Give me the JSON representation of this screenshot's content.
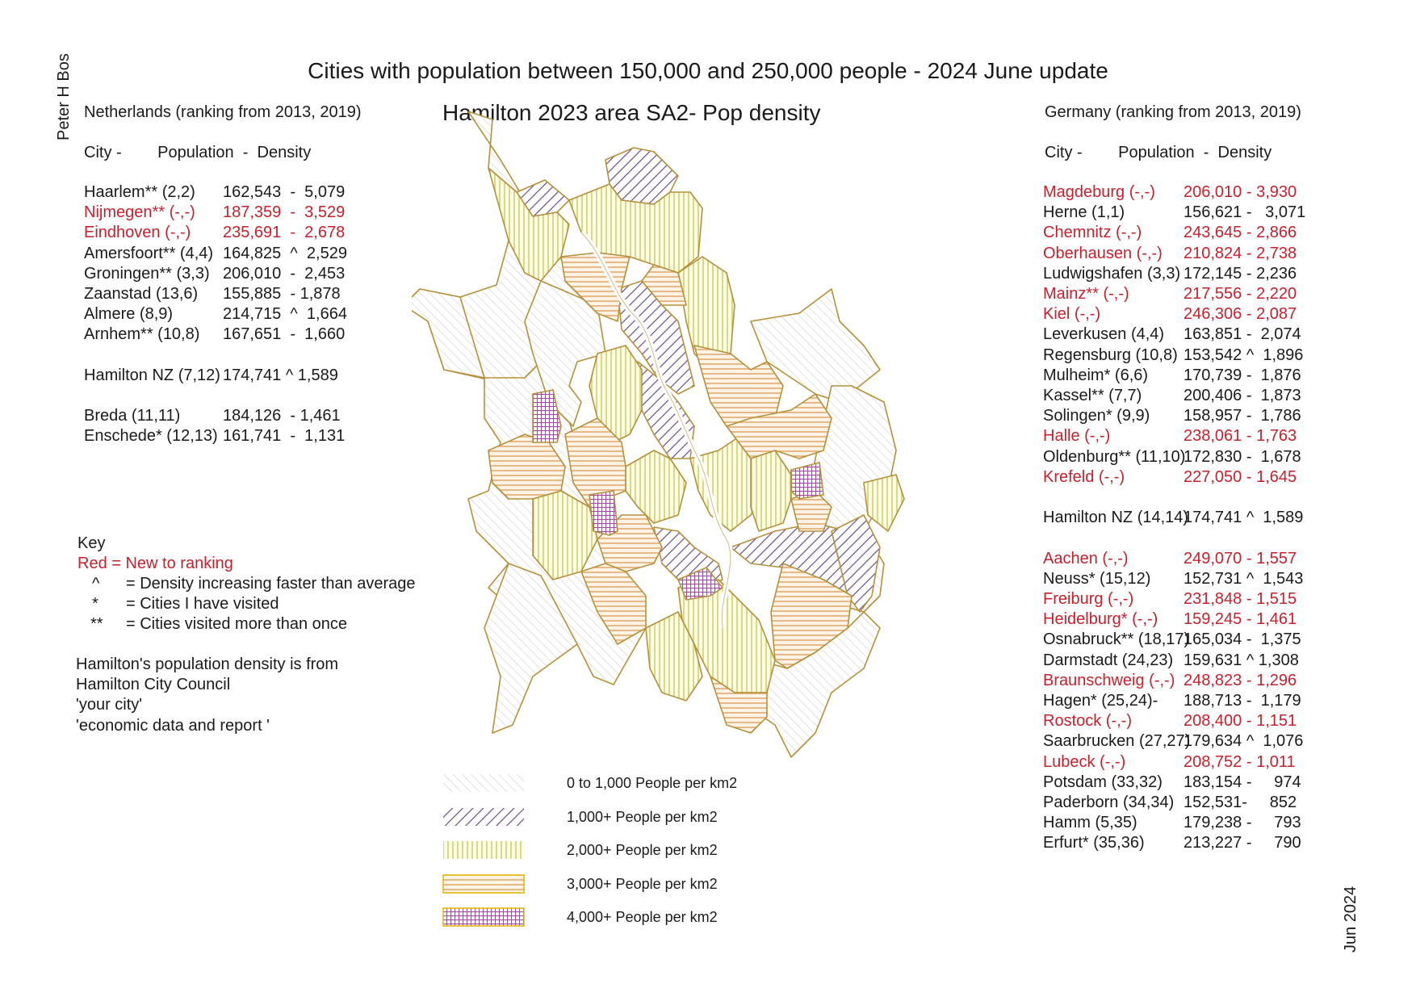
{
  "title": "Cities with population between 150,000 and 250,000 people - 2024 June update",
  "author": "Peter H Bos",
  "date_stamp": "Jun 2024",
  "map": {
    "title": "Hamilton 2023 area SA2- Pop density",
    "legend": [
      {
        "label": "0 to 1,000 People per km2",
        "pattern": "hatch-grey"
      },
      {
        "label": "1,000+ People per km2",
        "pattern": "hatch-purple"
      },
      {
        "label": "2,000+ People per km2",
        "pattern": "vert-yellow"
      },
      {
        "label": "3,000+ People per km2",
        "pattern": "horiz-orange"
      },
      {
        "label": "4,000+ People per km2",
        "pattern": "grid-magenta"
      }
    ],
    "colors": {
      "border": "#b8903a",
      "grey_hatch": "#c9c9c9",
      "purple_hatch": "#6b4c8a",
      "yellow_vertical": "#c9cc58",
      "orange_horizontal": "#e0a060",
      "magenta_grid": "#a24ba6",
      "river": "#ffffff"
    }
  },
  "netherlands": {
    "heading": "Netherlands (ranking from 2013, 2019)",
    "column_header": "City -        Population  -  Density",
    "rows": [
      {
        "city": "Haarlem** (2,2)",
        "stats": "162,543  -  5,079",
        "new": false
      },
      {
        "city": "Nijmegen** (-,-)",
        "stats": "187,359  -  3,529",
        "new": true
      },
      {
        "city": "Eindhoven (-,-)",
        "stats": "235,691  -  2,678",
        "new": true
      },
      {
        "city": "Amersfoort** (4,4)",
        "stats": "164,825  ^  2,529",
        "new": false
      },
      {
        "city": "Groningen** (3,3)",
        "stats": "206,010  -  2,453",
        "new": false
      },
      {
        "city": "Zaanstad (13,6)",
        "stats": "155,885  - 1,878",
        "new": false
      },
      {
        "city": "Almere (8,9)",
        "stats": "214,715  ^  1,664",
        "new": false
      },
      {
        "city": "Arnhem** (10,8)",
        "stats": "167,651  -  1,660",
        "new": false
      }
    ],
    "hamilton": {
      "city": "Hamilton NZ (7,12)",
      "stats": "174,741 ^ 1,589"
    },
    "rows_after": [
      {
        "city": "Breda (11,11)",
        "stats": "184,126  - 1,461",
        "new": false
      },
      {
        "city": "Enschede* (12,13)",
        "stats": "161,741  -  1,131",
        "new": false
      }
    ]
  },
  "key": {
    "heading": "Key",
    "red_note": "Red = New to ranking",
    "items": [
      {
        "symbol": "^",
        "text": "= Density increasing faster than average"
      },
      {
        "symbol": "*",
        "text": "= Cities I have visited"
      },
      {
        "symbol": "**",
        "text": "= Cities visited more than once"
      }
    ],
    "source_lines": [
      "Hamilton's population density is from",
      "Hamilton City Council",
      "'your city'",
      "'economic data and report '"
    ]
  },
  "germany": {
    "heading": "Germany (ranking from 2013, 2019)",
    "column_header": "City -        Population  -  Density",
    "rows": [
      {
        "city": "Magdeburg (-,-)",
        "stats": "206,010 - 3,930",
        "new": true
      },
      {
        "city": "Herne (1,1)",
        "stats": "156,621 -   3,071",
        "new": false
      },
      {
        "city": "Chemnitz (-,-)",
        "stats": "243,645 - 2,866",
        "new": true
      },
      {
        "city": "Oberhausen (-,-)",
        "stats": "210,824 - 2,738",
        "new": true
      },
      {
        "city": "Ludwigshafen  (3,3)",
        "stats": "172,145 - 2,236",
        "new": false
      },
      {
        "city": "Mainz** (-,-)",
        "stats": "217,556 - 2,220",
        "new": true
      },
      {
        "city": "Kiel (-,-)",
        "stats": "246,306 - 2,087",
        "new": true
      },
      {
        "city": "Leverkusen (4,4)",
        "stats": "163,851 -  2,074",
        "new": false
      },
      {
        "city": "Regensburg (10,8)",
        "stats": "153,542 ^  1,896",
        "new": false
      },
      {
        "city": "Mulheim* (6,6)",
        "stats": "170,739 -  1,876",
        "new": false
      },
      {
        "city": "Kassel** (7,7)",
        "stats": "200,406 -  1,873",
        "new": false
      },
      {
        "city": "Solingen* (9,9)",
        "stats": "158,957 -  1,786",
        "new": false
      },
      {
        "city": "Halle (-,-)",
        "stats": "238,061 - 1,763",
        "new": true
      },
      {
        "city": "Oldenburg** (11,10)",
        "stats": "172,830 -  1,678",
        "new": false
      },
      {
        "city": "Krefeld (-,-)",
        "stats": "227,050 - 1,645",
        "new": true
      }
    ],
    "hamilton": {
      "city": "Hamilton NZ (14,14)",
      "stats": "174,741 ^  1,589"
    },
    "rows_after": [
      {
        "city": "Aachen (-,-)",
        "stats": "249,070 - 1,557",
        "new": true
      },
      {
        "city": "Neuss* (15,12)",
        "stats": "152,731 ^  1,543",
        "new": false
      },
      {
        "city": "Freiburg (-,-)",
        "stats": "231,848 - 1,515",
        "new": true
      },
      {
        "city": "Heidelburg* (-,-)",
        "stats": "159,245 - 1,461",
        "new": true
      },
      {
        "city": "Osnabruck** (18,17)",
        "stats": "165,034 -  1,375",
        "new": false
      },
      {
        "city": "Darmstadt (24,23)",
        "stats": "159,631 ^ 1,308",
        "new": false
      },
      {
        "city": "Braunschweig (-,-)",
        "stats": "248,823 - 1,296",
        "new": true
      },
      {
        "city": "Hagen* (25,24)-",
        "stats": "188,713 -  1,179",
        "new": false
      },
      {
        "city": "Rostock (-,-)",
        "stats": "208,400 - 1,151",
        "new": true
      },
      {
        "city": "Saarbrucken (27,27)",
        "stats": "179,634 ^  1,076",
        "new": false
      },
      {
        "city": "Lubeck (-,-)",
        "stats": "208,752 - 1,011",
        "new": true
      },
      {
        "city": "Potsdam (33,32)",
        "stats": "183,154 -     974",
        "new": false
      },
      {
        "city": "Paderborn (34,34)",
        "stats": "152,531-     852",
        "new": false
      },
      {
        "city": "Hamm (5,35)",
        "stats": "179,238 -     793",
        "new": false
      },
      {
        "city": "Erfurt* (35,36)",
        "stats": "213,227 -     790",
        "new": false
      }
    ]
  }
}
